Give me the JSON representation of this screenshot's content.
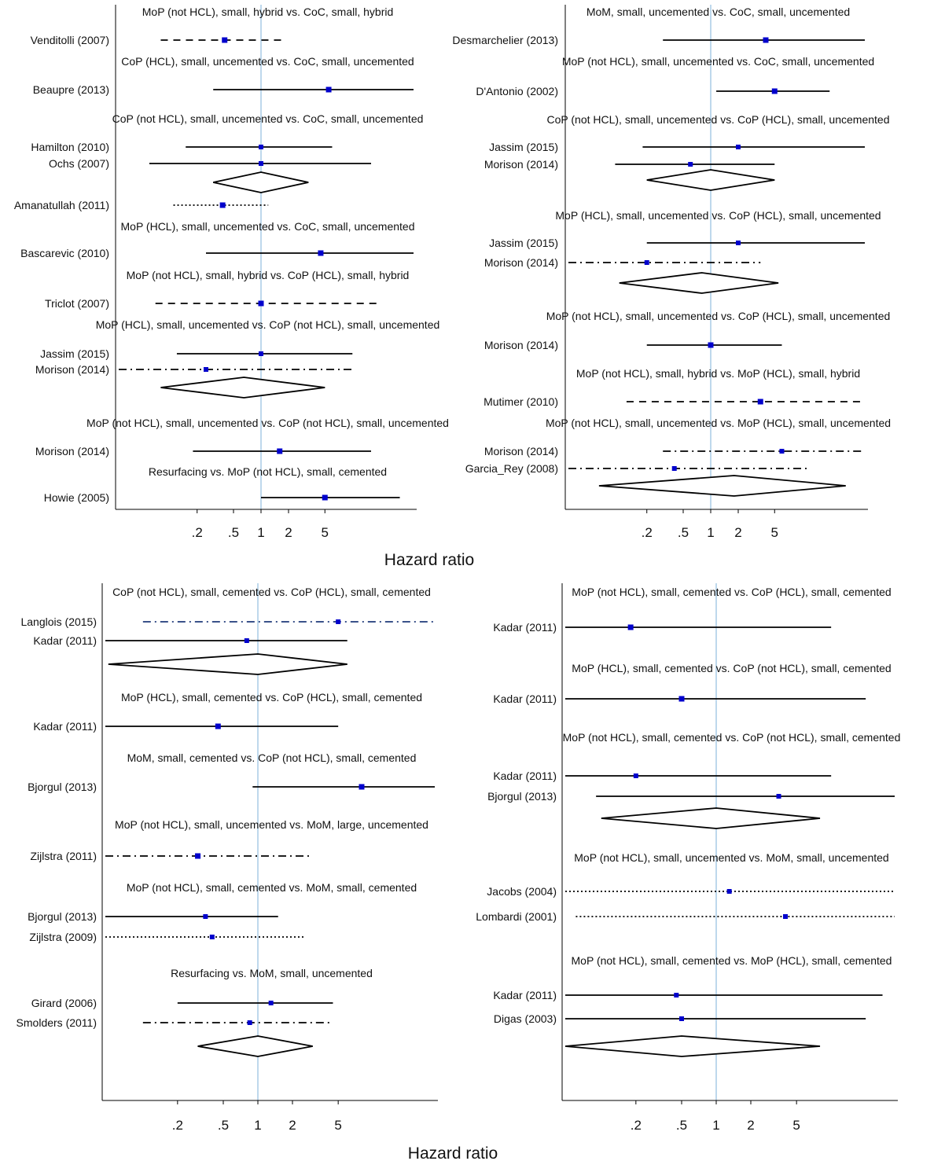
{
  "colors": {
    "point": "#0000cc",
    "refline": "#a9cbe6",
    "line": "#000000",
    "langlois_line": "#1f3a7a"
  },
  "xlabels": [
    "Hazard ratio",
    "Hazard ratio"
  ],
  "chart_data": [
    {
      "type": "forest",
      "xscale": "log",
      "xticks": [
        0.2,
        0.5,
        1,
        2,
        5
      ],
      "xtick_labels": [
        ".2",
        ".5",
        "1",
        "2",
        "5"
      ],
      "reference_line": 1,
      "groups": [
        {
          "title": "MoP (not HCL), small, hybrid vs. CoC, small, hybrid",
          "studies": [
            {
              "label": "Venditolli (2007)",
              "hr": 0.4,
              "lo": 0.08,
              "hi": 1.8,
              "style": "dashed"
            }
          ]
        },
        {
          "title": "CoP (HCL), small, uncemented vs. CoC, small, uncemented",
          "studies": [
            {
              "label": "Beaupre (2013)",
              "hr": 5.5,
              "lo": 0.3,
              "hi": 200,
              "style": "solid"
            }
          ]
        },
        {
          "title": "CoP (not HCL), small, uncemented vs. CoC, small, uncemented",
          "studies": [
            {
              "label": "Hamilton (2010)",
              "hr": 1.0,
              "lo": 0.15,
              "hi": 6.0,
              "style": "solid"
            },
            {
              "label": "Ochs (2007)",
              "hr": 1.0,
              "lo": 0.06,
              "hi": 16,
              "style": "solid"
            }
          ],
          "pooled": {
            "hr": 1.0,
            "lo": 0.3,
            "hi": 3.3
          }
        },
        {
          "title": "",
          "studies": [
            {
              "label": "Amanatullah (2011)",
              "hr": 0.38,
              "lo": 0.11,
              "hi": 1.2,
              "style": "dotted"
            }
          ]
        },
        {
          "title": "MoP (HCL), small, uncemented vs. CoC, small, uncemented",
          "studies": [
            {
              "label": "Bascarevic (2010)",
              "hr": 4.5,
              "lo": 0.25,
              "hi": 100,
              "style": "solid"
            }
          ]
        },
        {
          "title": "MoP (not HCL), small, hybrid vs. CoP (HCL), small, hybrid",
          "studies": [
            {
              "label": "Triclot (2007)",
              "hr": 1.0,
              "lo": 0.07,
              "hi": 20,
              "style": "dashed"
            }
          ]
        },
        {
          "title": "MoP (HCL), small, uncemented vs. CoP (not HCL), small, uncemented",
          "studies": [
            {
              "label": "Jassim (2015)",
              "hr": 1.0,
              "lo": 0.12,
              "hi": 10,
              "style": "solid"
            },
            {
              "label": "Morison (2014)",
              "hr": 0.25,
              "lo": 0.012,
              "hi": 10,
              "style": "dashdot"
            }
          ],
          "pooled": {
            "hr": 0.65,
            "lo": 0.08,
            "hi": 5.0
          }
        },
        {
          "title": "MoP (not HCL), small, uncemented vs. CoP (not HCL), small, uncemented",
          "studies": [
            {
              "label": "Morison (2014)",
              "hr": 1.6,
              "lo": 0.18,
              "hi": 16,
              "style": "solid"
            }
          ]
        },
        {
          "title": "Resurfacing vs. MoP (not HCL), small, cemented",
          "studies": [
            {
              "label": "Howie (2005)",
              "hr": 5.0,
              "lo": 1.0,
              "hi": 33,
              "style": "solid"
            }
          ]
        }
      ]
    },
    {
      "type": "forest",
      "xscale": "log",
      "xticks": [
        0.2,
        0.5,
        1,
        2,
        5
      ],
      "xtick_labels": [
        ".2",
        ".5",
        "1",
        "2",
        "5"
      ],
      "reference_line": 1,
      "groups": [
        {
          "title": "MoM, small, uncemented vs. CoC, small, uncemented",
          "studies": [
            {
              "label": "Desmarchelier (2013)",
              "hr": 4.0,
              "lo": 0.3,
              "hi": 90,
              "style": "solid"
            }
          ]
        },
        {
          "title": "MoP (not HCL), small, uncemented vs. CoC, small, uncemented",
          "studies": [
            {
              "label": "D'Antonio (2002)",
              "hr": 5.0,
              "lo": 1.15,
              "hi": 20,
              "style": "solid"
            }
          ]
        },
        {
          "title": "CoP (not HCL), small, uncemented vs. CoP (HCL), small, uncemented",
          "studies": [
            {
              "label": "Jassim (2015)",
              "hr": 2.0,
              "lo": 0.18,
              "hi": 60,
              "style": "solid"
            },
            {
              "label": "Morison (2014)",
              "hr": 0.6,
              "lo": 0.09,
              "hi": 5.0,
              "style": "solid"
            }
          ],
          "pooled": {
            "hr": 1.0,
            "lo": 0.2,
            "hi": 5.0
          }
        },
        {
          "title": "MoP (HCL), small, uncemented vs. CoP (HCL), small, uncemented",
          "studies": [
            {
              "label": "Jassim (2015)",
              "hr": 2.0,
              "lo": 0.2,
              "hi": 60,
              "style": "solid"
            },
            {
              "label": "Morison (2014)",
              "hr": 0.2,
              "lo": 0.005,
              "hi": 3.5,
              "style": "dashdot"
            }
          ],
          "pooled": {
            "hr": 0.8,
            "lo": 0.1,
            "hi": 5.5
          }
        },
        {
          "title": "MoP (not HCL), small, uncemented vs. CoP (HCL), small, uncemented",
          "studies": [
            {
              "label": "Morison (2014)",
              "hr": 1.0,
              "lo": 0.2,
              "hi": 6.0,
              "style": "solid"
            }
          ]
        },
        {
          "title": "MoP (not HCL), small, hybrid vs. MoP (HCL), small, hybrid",
          "studies": [
            {
              "label": "Mutimer (2010)",
              "hr": 3.5,
              "lo": 0.12,
              "hi": 120,
              "style": "dashed"
            }
          ]
        },
        {
          "title": "MoP (not HCL), small, uncemented vs. MoP (HCL), small, uncemented",
          "studies": [
            {
              "label": "Morison (2014)",
              "hr": 6.0,
              "lo": 0.3,
              "hi": 200,
              "style": "dashdot"
            },
            {
              "label": "Garcia_Rey (2008)",
              "hr": 0.4,
              "lo": 0.02,
              "hi": 12,
              "style": "dashdot"
            }
          ],
          "pooled": {
            "hr": 1.8,
            "lo": 0.06,
            "hi": 30
          }
        }
      ]
    },
    {
      "type": "forest",
      "xscale": "log",
      "xticks": [
        0.2,
        0.5,
        1,
        2,
        5
      ],
      "xtick_labels": [
        ".2",
        ".5",
        "1",
        "2",
        "5"
      ],
      "reference_line": 1,
      "groups": [
        {
          "title": "CoP (not HCL), small, cemented vs. CoP (HCL), small, cemented",
          "studies": [
            {
              "label": "Langlois (2015)",
              "hr": 5.0,
              "lo": 0.1,
              "hi": 200,
              "style": "dashdot"
            },
            {
              "label": "Kadar (2011)",
              "hr": 0.8,
              "lo": 0.03,
              "hi": 6.0,
              "style": "solid"
            }
          ],
          "pooled": {
            "hr": 1.0,
            "lo": 0.05,
            "hi": 6.0
          }
        },
        {
          "title": "MoP (HCL), small, cemented vs. CoP (HCL), small, cemented",
          "studies": [
            {
              "label": "Kadar (2011)",
              "hr": 0.45,
              "lo": 0.012,
              "hi": 5.0,
              "style": "solid"
            }
          ]
        },
        {
          "title": "MoM, small, cemented vs. CoP (not HCL), small, cemented",
          "studies": [
            {
              "label": "Bjorgul (2013)",
              "hr": 8.0,
              "lo": 0.9,
              "hi": 150,
              "style": "solid"
            }
          ]
        },
        {
          "title": "MoP (not HCL), small, uncemented vs. MoM, large, uncemented",
          "studies": [
            {
              "label": "Zijlstra (2011)",
              "hr": 0.3,
              "lo": 0.007,
              "hi": 3.0,
              "style": "dashdot"
            }
          ]
        },
        {
          "title": "MoP (not HCL), small, cemented vs. MoM, small, cemented",
          "studies": [
            {
              "label": "Bjorgul (2013)",
              "hr": 0.35,
              "lo": 0.03,
              "hi": 1.5,
              "style": "solid"
            },
            {
              "label": "Zijlstra (2009)",
              "hr": 0.4,
              "lo": 0.025,
              "hi": 2.5,
              "style": "dotted"
            }
          ]
        },
        {
          "title": "Resurfacing vs. MoM, small, uncemented",
          "studies": [
            {
              "label": "Girard (2006)",
              "hr": 1.3,
              "lo": 0.2,
              "hi": 4.5,
              "style": "solid"
            },
            {
              "label": "Smolders (2011)",
              "hr": 0.85,
              "lo": 0.1,
              "hi": 4.3,
              "style": "dashdot"
            }
          ],
          "pooled": {
            "hr": 1.0,
            "lo": 0.3,
            "hi": 3.0
          }
        }
      ]
    },
    {
      "type": "forest",
      "xscale": "log",
      "xticks": [
        0.2,
        0.5,
        1,
        2,
        5
      ],
      "xtick_labels": [
        ".2",
        ".5",
        "1",
        "2",
        "5"
      ],
      "reference_line": 1,
      "groups": [
        {
          "title": "MoP (not HCL), small, cemented vs. CoP (HCL), small, cemented",
          "studies": [
            {
              "label": "Kadar (2011)",
              "hr": 0.18,
              "lo": 0.003,
              "hi": 10,
              "style": "solid"
            }
          ]
        },
        {
          "title": "MoP (HCL), small, cemented vs. CoP (not HCL), small, cemented",
          "studies": [
            {
              "label": "Kadar (2011)",
              "hr": 0.5,
              "lo": 0.015,
              "hi": 20,
              "style": "solid"
            }
          ]
        },
        {
          "title": "MoP (not HCL), small, cemented vs. CoP (not HCL), small, cemented",
          "studies": [
            {
              "label": "Kadar (2011)",
              "hr": 0.2,
              "lo": 0.004,
              "hi": 10,
              "style": "solid"
            },
            {
              "label": "Bjorgul (2013)",
              "hr": 3.5,
              "lo": 0.09,
              "hi": 100,
              "style": "solid"
            }
          ],
          "pooled": {
            "hr": 1.0,
            "lo": 0.1,
            "hi": 8.0
          }
        },
        {
          "title": "MoP (not HCL), small, uncemented vs. MoM, small, uncemented",
          "studies": [
            {
              "label": "Jacobs (2004)",
              "hr": 1.3,
              "lo": 0.03,
              "hi": 80,
              "style": "dotted"
            },
            {
              "label": "Lombardi (2001)",
              "hr": 4.0,
              "lo": 0.06,
              "hi": 200,
              "style": "dotted"
            }
          ]
        },
        {
          "title": "MoP (not HCL), small, cemented vs. MoP (HCL), small, cemented",
          "studies": [
            {
              "label": "Kadar (2011)",
              "hr": 0.45,
              "lo": 0.007,
              "hi": 28,
              "style": "solid"
            },
            {
              "label": "Digas (2003)",
              "hr": 0.5,
              "lo": 0.015,
              "hi": 20,
              "style": "solid"
            }
          ],
          "pooled": {
            "hr": 0.5,
            "lo": 0.02,
            "hi": 8.0
          }
        }
      ]
    }
  ]
}
